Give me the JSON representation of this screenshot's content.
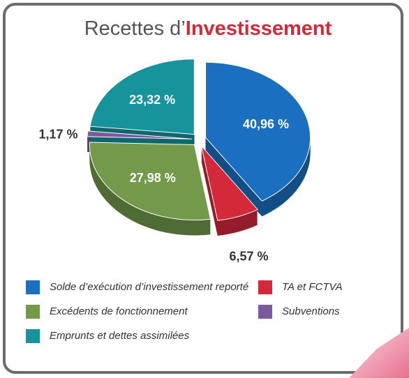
{
  "chart_data": {
    "type": "pie",
    "title": [
      "Recettes d’",
      "Investissement"
    ],
    "categories": [
      "Solde d’exécution d’investissement reporté",
      "TA et FCTVA",
      "Excédents de fonctionnement",
      "Subventions",
      "Emprunts et dettes assimilées"
    ],
    "values": [
      40.96,
      6.57,
      27.98,
      1.17,
      23.32
    ],
    "value_labels": [
      "40,96 %",
      "6,57 %",
      "27,98 %",
      "1,17 %",
      "23,32 %"
    ],
    "colors": [
      "#1b6fc1",
      "#d3293a",
      "#73994b",
      "#7a5a9c",
      "#17939b"
    ]
  }
}
